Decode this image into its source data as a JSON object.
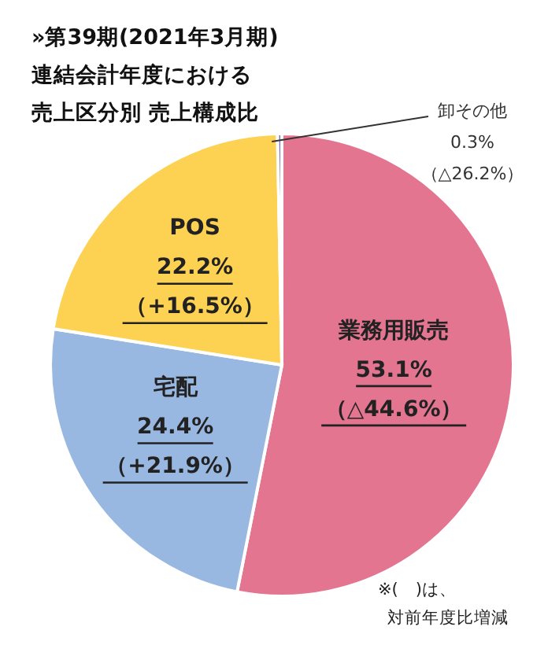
{
  "chart_data": {
    "type": "pie",
    "title": "»第39期(2021年3月期)",
    "subtitle": "連結会計年度における売上区分別 売上構成比",
    "categories": [
      "業務用販売",
      "宅配",
      "POS",
      "卸その他"
    ],
    "values": [
      53.1,
      24.4,
      22.2,
      0.3
    ],
    "colors": [
      "#e37591",
      "#98b8e2",
      "#fdd152",
      "#7f6fb0"
    ],
    "value_labels": [
      "53.1%\n（△44.6%）",
      "24.4%\n（+21.9%）",
      "22.2%\n（+16.5%）",
      "0.3%\n（△26.2%）"
    ],
    "annotations": [
      "※(　)は、",
      "対前年度比増減"
    ]
  }
}
